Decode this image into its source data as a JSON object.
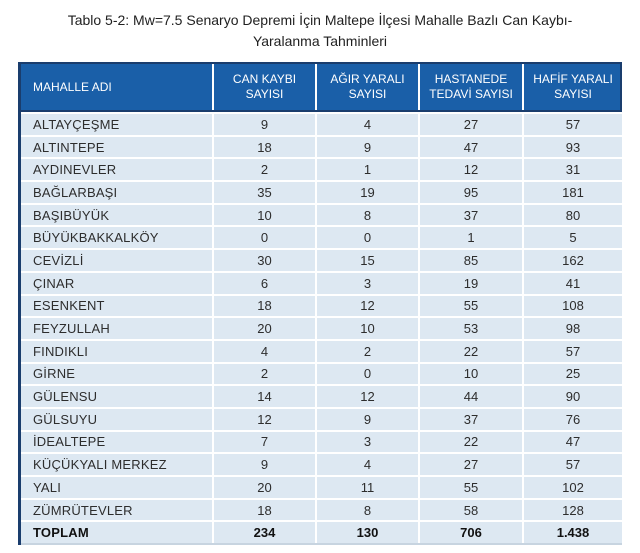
{
  "title": {
    "line1": "Tablo 5-2: Mw=7.5 Senaryo Depremi İçin Maltepe İlçesi Mahalle Bazlı Can Kaybı-",
    "line2": "Yaralanma Tahminleri"
  },
  "colors": {
    "header_bg": "#1a5fa8",
    "header_border": "#1a3d6d",
    "header_text": "#ffffff",
    "row_bg": "#dde8f2",
    "row_separator": "#ffffff",
    "body_text": "#2d2d2d",
    "bottom_border": "#c7d4e0"
  },
  "table": {
    "columns": [
      {
        "label": "MAHALLE ADI"
      },
      {
        "label": "CAN KAYBI SAYISI"
      },
      {
        "label": "AĞIR YARALI SAYISI"
      },
      {
        "label": "HASTANEDE TEDAVİ SAYISI"
      },
      {
        "label": "HAFİF YARALI SAYISI"
      }
    ],
    "rows": [
      {
        "name": "ALTAYÇEŞME",
        "values": [
          "9",
          "4",
          "27",
          "57"
        ]
      },
      {
        "name": "ALTINTEPE",
        "values": [
          "18",
          "9",
          "47",
          "93"
        ]
      },
      {
        "name": "AYDINEVLER",
        "values": [
          "2",
          "1",
          "12",
          "31"
        ]
      },
      {
        "name": "BAĞLARBAŞI",
        "values": [
          "35",
          "19",
          "95",
          "181"
        ]
      },
      {
        "name": "BAŞIBÜYÜK",
        "values": [
          "10",
          "8",
          "37",
          "80"
        ]
      },
      {
        "name": "BÜYÜKBAKKALKÖY",
        "values": [
          "0",
          "0",
          "1",
          "5"
        ]
      },
      {
        "name": "CEVİZLİ",
        "values": [
          "30",
          "15",
          "85",
          "162"
        ]
      },
      {
        "name": "ÇINAR",
        "values": [
          "6",
          "3",
          "19",
          "41"
        ]
      },
      {
        "name": "ESENKENT",
        "values": [
          "18",
          "12",
          "55",
          "108"
        ]
      },
      {
        "name": "FEYZULLAH",
        "values": [
          "20",
          "10",
          "53",
          "98"
        ]
      },
      {
        "name": "FINDIKLI",
        "values": [
          "4",
          "2",
          "22",
          "57"
        ]
      },
      {
        "name": "GİRNE",
        "values": [
          "2",
          "0",
          "10",
          "25"
        ]
      },
      {
        "name": "GÜLENSU",
        "values": [
          "14",
          "12",
          "44",
          "90"
        ]
      },
      {
        "name": "GÜLSUYU",
        "values": [
          "12",
          "9",
          "37",
          "76"
        ]
      },
      {
        "name": "İDEALTEPE",
        "values": [
          "7",
          "3",
          "22",
          "47"
        ]
      },
      {
        "name": "KÜÇÜKYALI MERKEZ",
        "values": [
          "9",
          "4",
          "27",
          "57"
        ]
      },
      {
        "name": "YALI",
        "values": [
          "20",
          "11",
          "55",
          "102"
        ]
      },
      {
        "name": "ZÜMRÜTEVLER",
        "values": [
          "18",
          "8",
          "58",
          "128"
        ]
      }
    ],
    "total_row": {
      "name": "TOPLAM",
      "values": [
        "234",
        "130",
        "706",
        "1.438"
      ]
    }
  }
}
